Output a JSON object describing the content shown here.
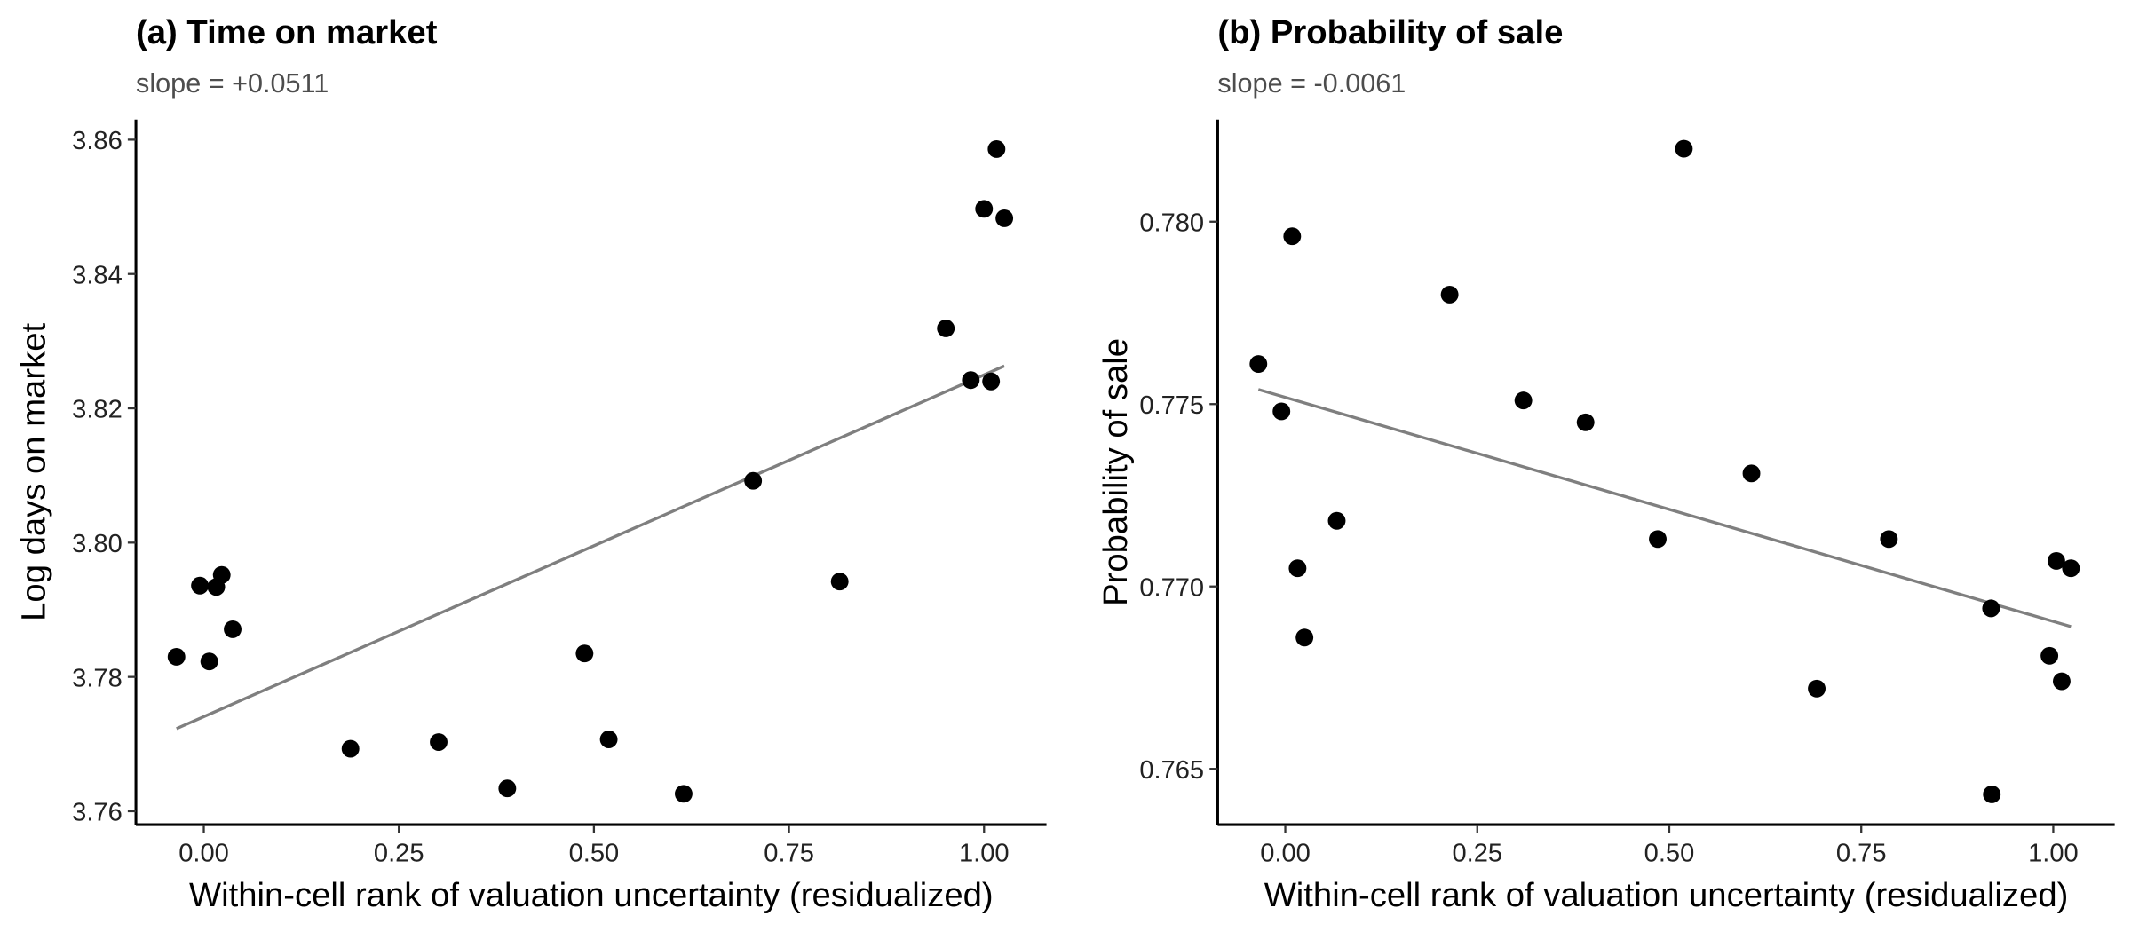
{
  "chart_data": [
    {
      "type": "scatter",
      "title": "(a) Time on market",
      "subtitle": "slope = +0.0511",
      "x_label": "Within-cell rank of valuation uncertainty (residualized)",
      "y_label": "Log days on market",
      "x": [
        -0.035,
        -0.005,
        0.007,
        0.016,
        0.023,
        0.037,
        0.188,
        0.301,
        0.389,
        0.488,
        0.519,
        0.615,
        0.704,
        0.815,
        0.951,
        0.983,
        1.0,
        1.009,
        1.016,
        1.026
      ],
      "values": [
        3.783,
        3.7936,
        3.7823,
        3.7934,
        3.7952,
        3.7871,
        3.7693,
        3.7703,
        3.7634,
        3.7835,
        3.7707,
        3.7626,
        3.8092,
        3.7942,
        3.8319,
        3.8242,
        3.8497,
        3.824,
        3.8586,
        3.8483
      ],
      "color": "#000000",
      "fit": {
        "x": [
          -0.035,
          1.026
        ],
        "values": [
          3.7723,
          3.8263
        ],
        "color": "#7f7f7f"
      },
      "xlim": [
        -0.087,
        1.08
      ],
      "ylim": [
        3.758,
        3.863
      ],
      "xticks": [
        {
          "value": 0,
          "label": "0.00"
        },
        {
          "value": 0.25,
          "label": "0.25"
        },
        {
          "value": 0.5,
          "label": "0.50"
        },
        {
          "value": 0.75,
          "label": "0.75"
        },
        {
          "value": 1,
          "label": "1.00"
        }
      ],
      "yticks": [
        3.76,
        3.78,
        {
          "value": 3.8,
          "label": "3.80"
        },
        3.82,
        3.84,
        3.86
      ]
    },
    {
      "type": "scatter",
      "title": "(b) Probability of sale",
      "subtitle": "slope = -0.0061",
      "x_label": "Within-cell rank of valuation uncertainty (residualized)",
      "y_label": "Probability of sale",
      "x": [
        -0.035,
        -0.005,
        0.009,
        0.016,
        0.025,
        0.067,
        0.214,
        0.31,
        0.391,
        0.485,
        0.519,
        0.607,
        0.692,
        0.786,
        0.919,
        0.92,
        0.995,
        1.004,
        1.011,
        1.023
      ],
      "values": [
        0.7761,
        0.7748,
        0.7796,
        0.7705,
        0.7686,
        0.7718,
        0.778,
        0.7751,
        0.7745,
        0.7713,
        0.782,
        0.7731,
        0.7672,
        0.7713,
        0.7694,
        0.7643,
        0.7681,
        0.7707,
        0.7674,
        0.7705
      ],
      "color": "#000000",
      "fit": {
        "x": [
          -0.035,
          1.023
        ],
        "values": [
          0.7754,
          0.7689
        ],
        "color": "#7f7f7f"
      },
      "xlim": [
        -0.088,
        1.08
      ],
      "ylim": [
        0.76347,
        0.7828
      ],
      "xticks": [
        {
          "value": 0,
          "label": "0.00"
        },
        {
          "value": 0.25,
          "label": "0.25"
        },
        {
          "value": 0.5,
          "label": "0.50"
        },
        {
          "value": 0.75,
          "label": "0.75"
        },
        {
          "value": 1,
          "label": "1.00"
        }
      ],
      "yticks": [
        0.765,
        {
          "value": 0.77,
          "label": "0.770"
        },
        0.775,
        {
          "value": 0.78,
          "label": "0.780"
        }
      ]
    }
  ]
}
